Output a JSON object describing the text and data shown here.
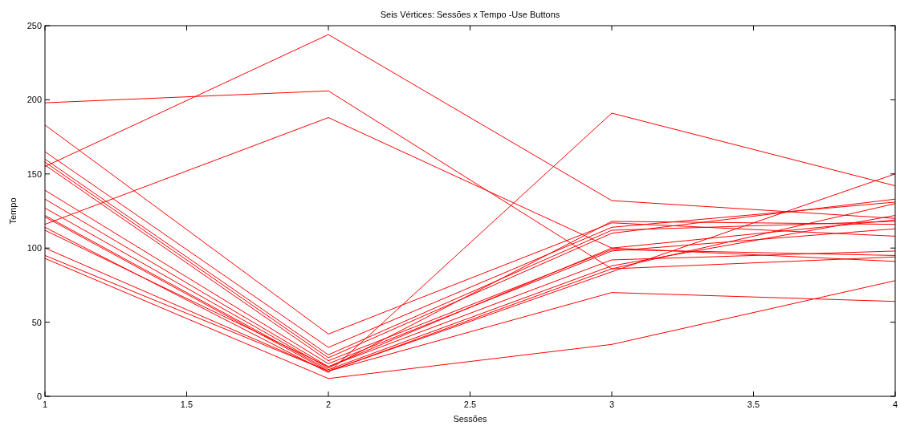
{
  "chart_data": {
    "type": "line",
    "title": "Seis Vértices: Sessões x Tempo -Use Buttons",
    "xlabel": "Sessões",
    "ylabel": "Tempo",
    "x": [
      1,
      2,
      3,
      4
    ],
    "xlim": [
      1,
      4
    ],
    "xticks": [
      1,
      1.5,
      2,
      2.5,
      3,
      3.5,
      4
    ],
    "ylim": [
      0,
      250
    ],
    "yticks": [
      0,
      50,
      100,
      150,
      200,
      250
    ],
    "grid": false,
    "marker": "none",
    "line_style": "solid",
    "series": [
      {
        "color": "#ff0000",
        "values": [
          198,
          206,
          86,
          94
        ]
      },
      {
        "color": "#ff0000",
        "values": [
          155,
          244,
          132,
          120
        ]
      },
      {
        "color": "#ff0000",
        "values": [
          116,
          188,
          100,
          91
        ]
      },
      {
        "color": "#ff0000",
        "values": [
          183,
          42,
          117,
          108
        ]
      },
      {
        "color": "#ff0000",
        "values": [
          165,
          33,
          114,
          131
        ]
      },
      {
        "color": "#ff0000",
        "values": [
          160,
          28,
          112,
          118
        ]
      },
      {
        "color": "#ff0000",
        "values": [
          158,
          26,
          110,
          133
        ]
      },
      {
        "color": "#ff0000",
        "values": [
          156,
          24,
          99,
          95
        ]
      },
      {
        "color": "#ff0000",
        "values": [
          139,
          22,
          98,
          113
        ]
      },
      {
        "color": "#ff0000",
        "values": [
          133,
          20,
          92,
          98
        ]
      },
      {
        "color": "#ff0000",
        "values": [
          127,
          19,
          118,
          116
        ]
      },
      {
        "color": "#ff0000",
        "values": [
          122,
          18,
          88,
          122
        ]
      },
      {
        "color": "#ff0000",
        "values": [
          121,
          17,
          84,
          150
        ]
      },
      {
        "color": "#ff0000",
        "values": [
          114,
          16,
          191,
          142
        ]
      },
      {
        "color": "#ff0000",
        "values": [
          112,
          20,
          100,
          119
        ]
      },
      {
        "color": "#ff0000",
        "values": [
          100,
          17,
          86,
          130
        ]
      },
      {
        "color": "#ff0000",
        "values": [
          95,
          17,
          70,
          64
        ]
      },
      {
        "color": "#ff0000",
        "values": [
          93,
          12,
          35,
          78
        ]
      }
    ]
  }
}
